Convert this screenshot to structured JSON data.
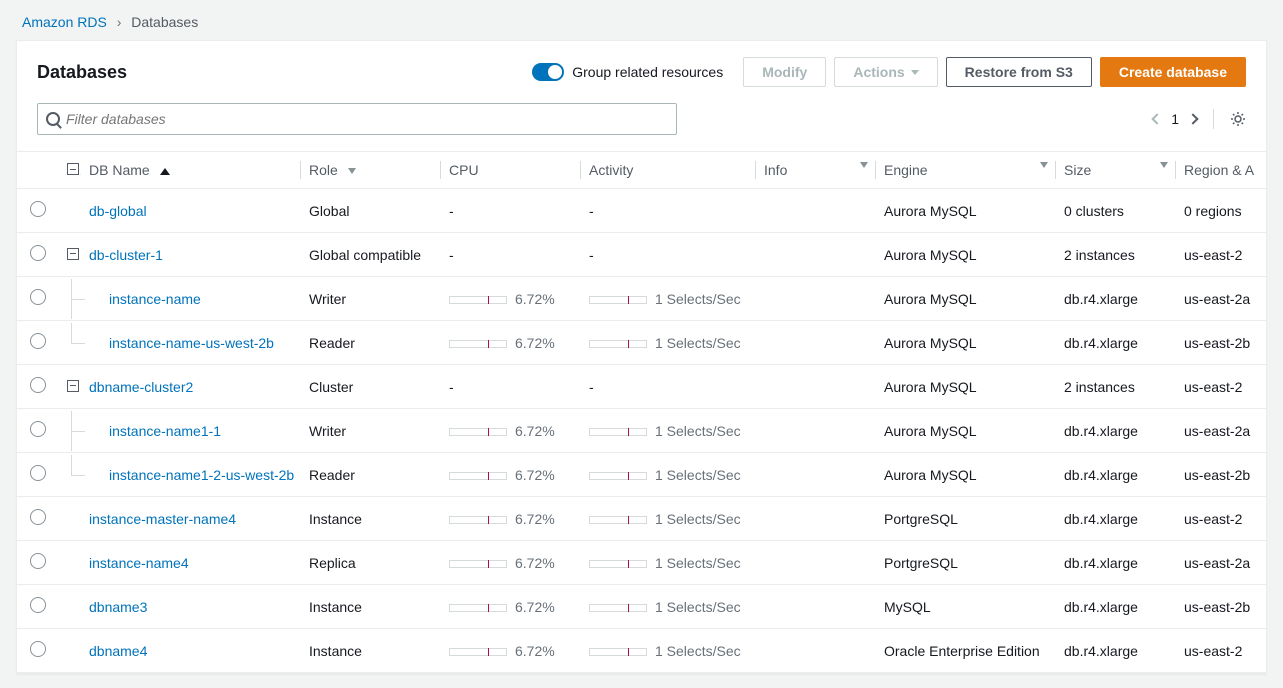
{
  "breadcrumbs": {
    "root": "Amazon RDS",
    "current": "Databases"
  },
  "header": {
    "title": "Databases",
    "group_toggle_label": "Group related resources",
    "btn_modify": "Modify",
    "btn_actions": "Actions",
    "btn_restore": "Restore from S3",
    "btn_create": "Create database"
  },
  "filter": {
    "placeholder": "Filter databases"
  },
  "pager": {
    "page": "1"
  },
  "columns": {
    "name": "DB Name",
    "role": "Role",
    "cpu": "CPU",
    "activity": "Activity",
    "info": "Info",
    "engine": "Engine",
    "size": "Size",
    "region": "Region & A"
  },
  "metric_defaults": {
    "cpu_pct": "6.72%",
    "activity_text": "1 Selects/Sec",
    "bar_mark_pos": 0.68
  },
  "rows": [
    {
      "name": "db-global",
      "role": "Global",
      "cpu": "-",
      "activity": "-",
      "engine": "Aurora MySQL",
      "size": "0 clusters",
      "region": "0 regions",
      "indent": 0,
      "expandable": false,
      "group_top": true
    },
    {
      "name": "db-cluster-1",
      "role": "Global compatible",
      "cpu": "-",
      "activity": "-",
      "engine": "Aurora MySQL",
      "size": "2 instances",
      "region": "us-east-2",
      "indent": 0,
      "expandable": true,
      "group_top": true
    },
    {
      "name": "instance-name",
      "role": "Writer",
      "cpu": "6.72%",
      "activity": "1 Selects/Sec",
      "engine": "Aurora MySQL",
      "size": "db.r4.xlarge",
      "region": "us-east-2a",
      "indent": 1,
      "has_bar": true,
      "tree_full": true
    },
    {
      "name": "instance-name-us-west-2b",
      "role": "Reader",
      "cpu": "6.72%",
      "activity": "1 Selects/Sec",
      "engine": "Aurora MySQL",
      "size": "db.r4.xlarge",
      "region": "us-east-2b",
      "indent": 1,
      "has_bar": true
    },
    {
      "name": "dbname-cluster2",
      "role": "Cluster",
      "cpu": "-",
      "activity": "-",
      "engine": "Aurora MySQL",
      "size": "2 instances",
      "region": "us-east-2",
      "indent": 0,
      "expandable": true,
      "group_top": true
    },
    {
      "name": "instance-name1-1",
      "role": "Writer",
      "cpu": "6.72%",
      "activity": "1 Selects/Sec",
      "engine": "Aurora MySQL",
      "size": "db.r4.xlarge",
      "region": "us-east-2a",
      "indent": 1,
      "has_bar": true,
      "tree_full": true
    },
    {
      "name": "instance-name1-2-us-west-2b",
      "role": "Reader",
      "cpu": "6.72%",
      "activity": "1 Selects/Sec",
      "engine": "Aurora MySQL",
      "size": "db.r4.xlarge",
      "region": "us-east-2b",
      "indent": 1,
      "has_bar": true
    },
    {
      "name": "instance-master-name4",
      "role": "Instance",
      "cpu": "6.72%",
      "activity": "1 Selects/Sec",
      "engine": "PortgreSQL",
      "size": "db.r4.xlarge",
      "region": "us-east-2",
      "indent": 0,
      "has_bar": true,
      "group_top": true
    },
    {
      "name": "instance-name4",
      "role": "Replica",
      "cpu": "6.72%",
      "activity": "1 Selects/Sec",
      "engine": "PortgreSQL",
      "size": "db.r4.xlarge",
      "region": "us-east-2a",
      "indent": 0,
      "has_bar": true
    },
    {
      "name": "dbname3",
      "role": "Instance",
      "cpu": "6.72%",
      "activity": "1 Selects/Sec",
      "engine": "MySQL",
      "size": "db.r4.xlarge",
      "region": "us-east-2b",
      "indent": 0,
      "has_bar": true
    },
    {
      "name": "dbname4",
      "role": "Instance",
      "cpu": "6.72%",
      "activity": "1 Selects/Sec",
      "engine": "Oracle Enterprise Edition",
      "size": "db.r4.xlarge",
      "region": "us-east-2",
      "indent": 0,
      "has_bar": true
    }
  ],
  "colors": {
    "link": "#0073bb",
    "primary_btn": "#e47911",
    "bar_mark": "#b0084d",
    "border": "#eaeded"
  }
}
